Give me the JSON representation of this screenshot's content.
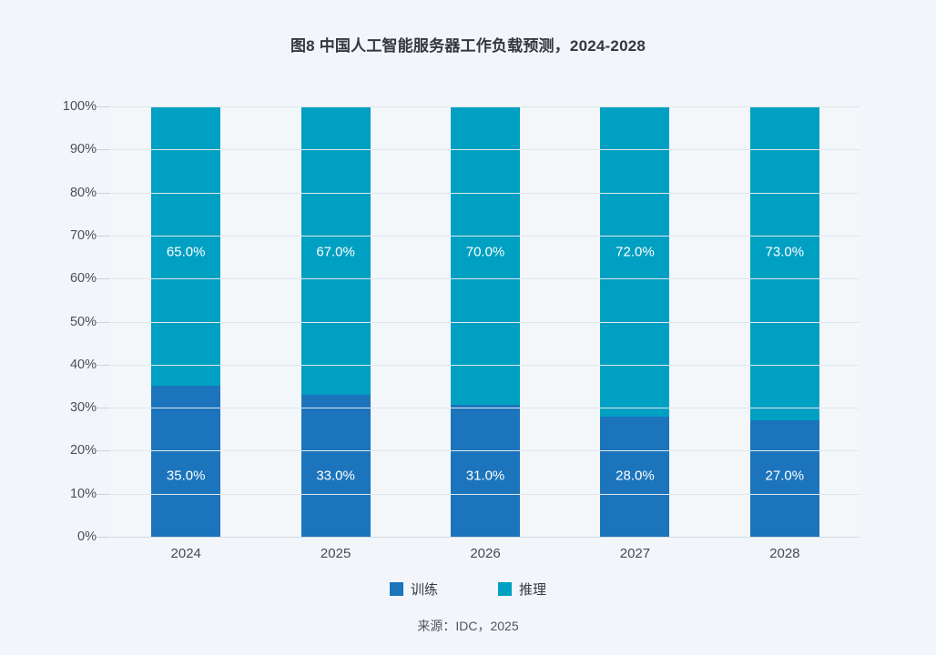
{
  "chart_data": {
    "type": "bar",
    "stacked": true,
    "title": "图8 中国人工智能服务器工作负载预测，2024-2028",
    "categories": [
      "2024",
      "2025",
      "2026",
      "2027",
      "2028"
    ],
    "series": [
      {
        "key": "training",
        "name": "训练",
        "color": "#1B74BC",
        "values": [
          35.0,
          33.0,
          31.0,
          28.0,
          27.0
        ],
        "labels": [
          "35.0%",
          "33.0%",
          "31.0%",
          "28.0%",
          "27.0%"
        ]
      },
      {
        "key": "inference",
        "name": "推理",
        "color": "#00A0C2",
        "values": [
          65.0,
          67.0,
          70.0,
          72.0,
          73.0
        ],
        "labels": [
          "65.0%",
          "67.0%",
          "70.0%",
          "72.0%",
          "73.0%"
        ]
      }
    ],
    "xlabel": "",
    "ylabel": "",
    "ylim": [
      0,
      100
    ],
    "ytick_step": 10,
    "ytick_labels": [
      "0%",
      "10%",
      "20%",
      "30%",
      "40%",
      "50%",
      "60%",
      "70%",
      "80%",
      "90%",
      "100%"
    ],
    "grid": true,
    "legend_position": "bottom",
    "label_text_color": "#FFFFFF"
  },
  "source": "来源：IDC，2025",
  "colors": {
    "page_background": "#F2F5F9",
    "plot_background": "#F3F7FA",
    "gridline": "#E0E6EC",
    "baseline": "#D3DAE1",
    "axis_text": "#4A5057",
    "title_text": "#33383E"
  },
  "layout": {
    "inference_label_top_pct": 33.8,
    "training_label_top_pct": 85.8
  }
}
